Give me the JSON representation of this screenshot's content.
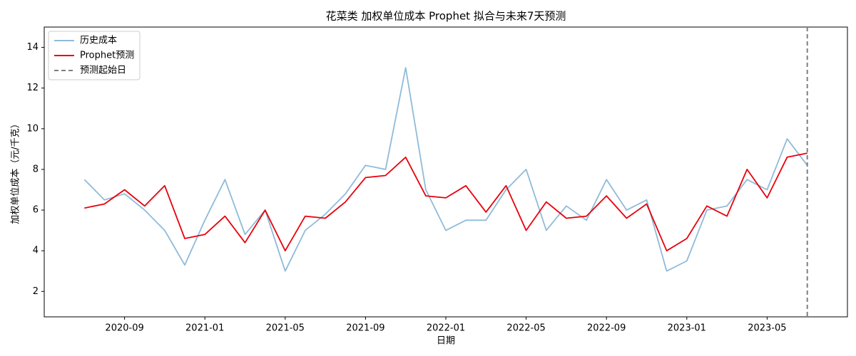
{
  "chart_data": {
    "type": "line",
    "title": "花菜类 加权单位成本 Prophet 拟合与未来7天预测",
    "xlabel": "日期",
    "ylabel": "加权单位成本（元/千克）",
    "x": [
      "2020-07",
      "2020-08",
      "2020-09",
      "2020-10",
      "2020-11",
      "2020-12",
      "2021-01",
      "2021-02",
      "2021-03",
      "2021-04",
      "2021-05",
      "2021-06",
      "2021-07",
      "2021-08",
      "2021-09",
      "2021-10",
      "2021-11",
      "2021-12",
      "2022-01",
      "2022-02",
      "2022-03",
      "2022-04",
      "2022-05",
      "2022-06",
      "2022-07",
      "2022-08",
      "2022-09",
      "2022-10",
      "2022-11",
      "2022-12",
      "2023-01",
      "2023-02",
      "2023-03",
      "2023-04",
      "2023-05",
      "2023-06",
      "2023-07"
    ],
    "series": [
      {
        "name": "历史成本",
        "color": "#8fbbd9",
        "dash": false,
        "values": [
          7.5,
          6.5,
          6.8,
          6.0,
          5.0,
          3.3,
          5.5,
          7.5,
          4.8,
          6.0,
          3.0,
          5.0,
          5.8,
          6.8,
          8.2,
          8.0,
          13.0,
          7.0,
          5.0,
          5.5,
          5.5,
          7.0,
          8.0,
          5.0,
          6.2,
          5.5,
          7.5,
          6.0,
          6.5,
          3.0,
          3.5,
          6.0,
          6.2,
          7.5,
          7.0,
          9.5,
          8.2
        ]
      },
      {
        "name": "Prophet预测",
        "color": "#e8000b",
        "dash": false,
        "values": [
          6.1,
          6.3,
          7.0,
          6.2,
          7.2,
          4.6,
          4.8,
          5.7,
          4.4,
          6.0,
          4.0,
          5.7,
          5.6,
          6.4,
          7.6,
          7.7,
          8.6,
          6.7,
          6.6,
          7.2,
          5.9,
          7.2,
          5.0,
          6.4,
          5.6,
          5.7,
          6.7,
          5.6,
          6.3,
          4.0,
          4.6,
          6.2,
          5.7,
          8.0,
          6.6,
          8.6,
          8.8
        ]
      }
    ],
    "vline": {
      "x": "2023-07",
      "name": "预测起始日",
      "color": "#7f7f7f"
    },
    "xlim": [
      "2020-05",
      "2023-09"
    ],
    "xticks": [
      "2020-09",
      "2021-01",
      "2021-05",
      "2021-09",
      "2022-01",
      "2022-05",
      "2022-09",
      "2023-01",
      "2023-05"
    ],
    "ylim": [
      0.75,
      15
    ],
    "yticks": [
      2,
      4,
      6,
      8,
      10,
      12,
      14
    ],
    "legend": "upper-left",
    "grid": false
  }
}
